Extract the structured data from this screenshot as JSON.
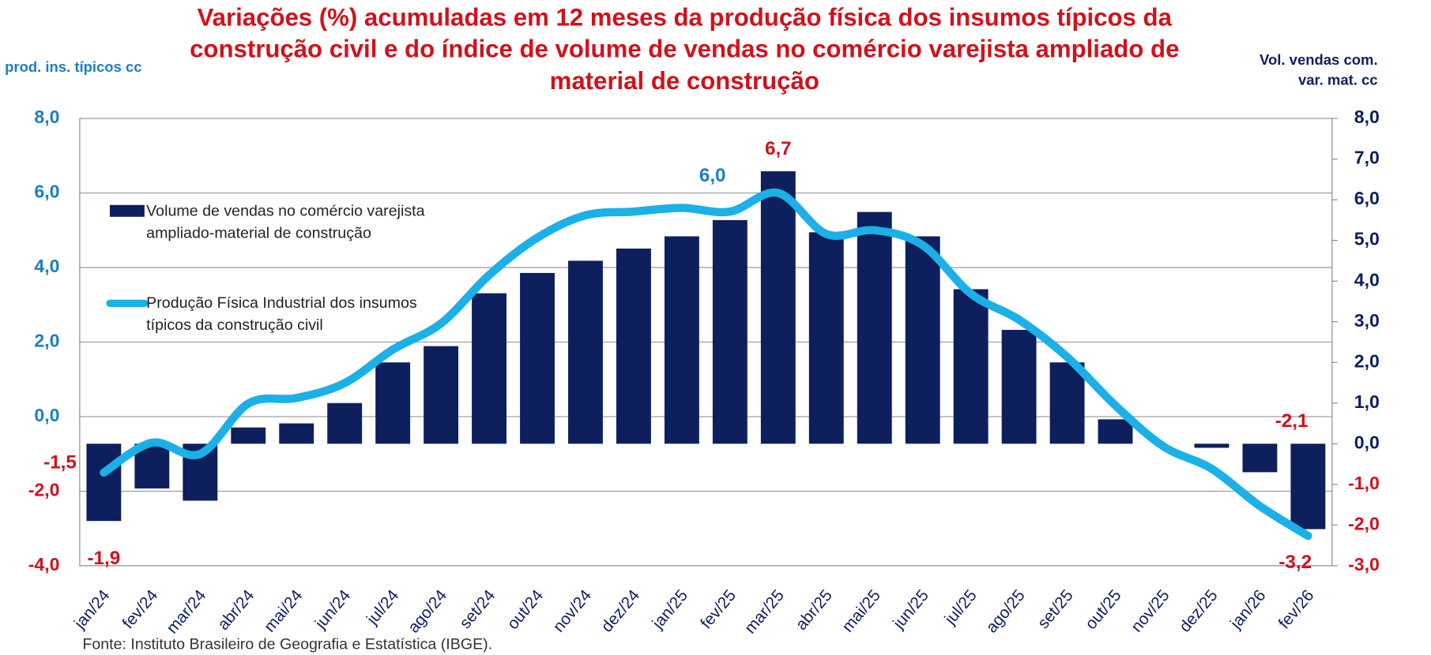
{
  "chart_data": {
    "type": "bar-line",
    "title": "Variações (%) acumuladas em 12 meses da produção física dos insumos típicos da construção civil e do índice de volume de vendas no comércio varejista ampliado de material de construção",
    "y_label": "prod. ins. típicos cc",
    "y2_label": "Vol. vendas com. var. mat. cc",
    "source": "Fonte: Instituto Brasileiro de Geografia e Estatística (IBGE).",
    "categories": [
      "jan/24",
      "fev/24",
      "mar/24",
      "abr/24",
      "mai/24",
      "jun/24",
      "jul/24",
      "ago/24",
      "set/24",
      "out/24",
      "nov/24",
      "dez/24",
      "jan/25",
      "fev/25",
      "mar/25",
      "abr/25",
      "mai/25",
      "jun/25",
      "jul/25",
      "ago/25",
      "set/25",
      "out/25",
      "nov/25",
      "dez/25",
      "jan/26",
      "fev/26"
    ],
    "series": [
      {
        "name": "Volume de vendas no comércio varejista ampliado-material de construção",
        "type": "bar",
        "axis": "y2",
        "color": "#0d1f5c",
        "values": [
          -1.9,
          -1.1,
          -1.4,
          0.4,
          0.5,
          1.0,
          2.0,
          2.4,
          3.7,
          4.2,
          4.5,
          4.8,
          5.1,
          5.5,
          6.7,
          5.2,
          5.7,
          5.1,
          3.8,
          2.8,
          2.0,
          0.6,
          0.0,
          -0.1,
          -0.7,
          -2.1
        ],
        "value_labels": [
          "-1,9",
          null,
          null,
          null,
          null,
          null,
          null,
          null,
          null,
          null,
          null,
          null,
          null,
          null,
          "6,7",
          null,
          null,
          null,
          null,
          null,
          null,
          null,
          null,
          null,
          null,
          "-2,1"
        ]
      },
      {
        "name": "Produção Física Industrial dos insumos típicos da construção civil",
        "type": "line",
        "axis": "y",
        "color": "#1ab0e8",
        "values": [
          -1.5,
          -0.7,
          -1.0,
          0.35,
          0.5,
          0.9,
          1.8,
          2.5,
          3.8,
          4.8,
          5.4,
          5.5,
          5.6,
          5.5,
          6.0,
          4.9,
          5.0,
          4.6,
          3.3,
          2.6,
          1.6,
          0.3,
          -0.8,
          -1.4,
          -2.4,
          -3.2
        ],
        "value_labels": [
          "-1,5",
          null,
          null,
          null,
          null,
          null,
          null,
          null,
          null,
          null,
          null,
          null,
          null,
          null,
          "6,0",
          null,
          null,
          null,
          null,
          null,
          null,
          null,
          null,
          null,
          null,
          "-3,2"
        ]
      }
    ],
    "ylim": [
      -4,
      8
    ],
    "yticks": [
      {
        "value": -4,
        "label": "-4,0"
      },
      {
        "value": -2,
        "label": "-2,0"
      },
      {
        "value": 0,
        "label": "0,0"
      },
      {
        "value": 2,
        "label": "2,0"
      },
      {
        "value": 4,
        "label": "4,0"
      },
      {
        "value": 6,
        "label": "6,0"
      },
      {
        "value": 8,
        "label": "8,0"
      }
    ],
    "y2lim": [
      -3,
      8
    ],
    "y2ticks": [
      {
        "value": -3,
        "label": "-3,0"
      },
      {
        "value": -2,
        "label": "-2,0"
      },
      {
        "value": -1,
        "label": "-1,0"
      },
      {
        "value": 0,
        "label": "0,0"
      },
      {
        "value": 1,
        "label": "1,0"
      },
      {
        "value": 2,
        "label": "2,0"
      },
      {
        "value": 3,
        "label": "3,0"
      },
      {
        "value": 4,
        "label": "4,0"
      },
      {
        "value": 5,
        "label": "5,0"
      },
      {
        "value": 6,
        "label": "6,0"
      },
      {
        "value": 7,
        "label": "7,0"
      },
      {
        "value": 8,
        "label": "8,0"
      }
    ],
    "grid": true
  }
}
